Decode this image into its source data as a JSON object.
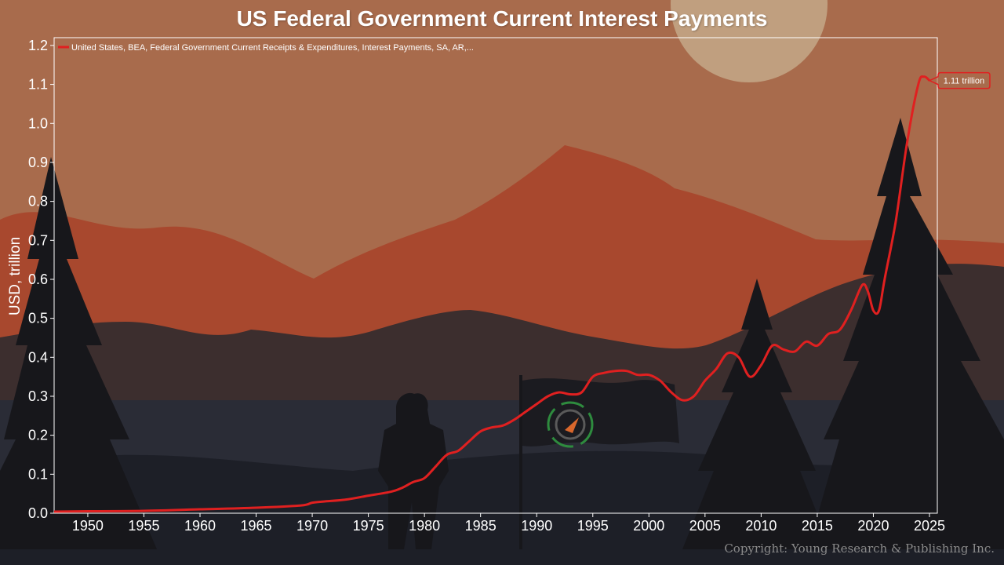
{
  "chart_data": {
    "type": "line",
    "title": "US Federal Government Current Interest Payments",
    "ylabel": "USD, trillion",
    "xlabel": "",
    "xlim": [
      1947,
      2025.7
    ],
    "ylim": [
      0,
      1.22
    ],
    "x_ticks": [
      1950,
      1955,
      1960,
      1965,
      1970,
      1975,
      1980,
      1985,
      1990,
      1995,
      2000,
      2005,
      2010,
      2015,
      2020,
      2025
    ],
    "y_ticks": [
      0.0,
      0.1,
      0.2,
      0.3,
      0.4,
      0.5,
      0.6,
      0.7,
      0.8,
      0.9,
      1.0,
      1.1,
      1.2
    ],
    "grid": false,
    "legend_position": "top-left",
    "series": [
      {
        "name": "United States, BEA, Federal Government Current Receipts & Expenditures, Interest Payments, SA, AR,...",
        "color": "#e02020",
        "x": [
          1947,
          1950,
          1955,
          1960,
          1965,
          1969,
          1970,
          1971,
          1973,
          1975,
          1977,
          1978,
          1979,
          1980,
          1981,
          1982,
          1983,
          1984,
          1985,
          1986,
          1987,
          1988,
          1989,
          1990,
          1991,
          1992,
          1993,
          1994,
          1995,
          1996,
          1997,
          1998,
          1999,
          2000,
          2001,
          2002,
          2003,
          2004,
          2005,
          2006,
          2007,
          2008,
          2009,
          2010,
          2011,
          2012,
          2013,
          2014,
          2015,
          2016,
          2017,
          2018,
          2019,
          2019.5,
          2020,
          2020.5,
          2021,
          2022,
          2023,
          2024,
          2024.5,
          2025
        ],
        "values": [
          0.004,
          0.005,
          0.006,
          0.01,
          0.014,
          0.02,
          0.027,
          0.03,
          0.035,
          0.045,
          0.055,
          0.065,
          0.08,
          0.09,
          0.12,
          0.15,
          0.16,
          0.185,
          0.21,
          0.22,
          0.225,
          0.24,
          0.26,
          0.28,
          0.3,
          0.31,
          0.305,
          0.31,
          0.35,
          0.36,
          0.365,
          0.365,
          0.355,
          0.355,
          0.34,
          0.31,
          0.29,
          0.3,
          0.34,
          0.37,
          0.41,
          0.4,
          0.35,
          0.38,
          0.43,
          0.42,
          0.415,
          0.44,
          0.43,
          0.46,
          0.47,
          0.52,
          0.585,
          0.57,
          0.52,
          0.52,
          0.6,
          0.75,
          0.95,
          1.1,
          1.12,
          1.11
        ]
      }
    ],
    "annotations": [
      {
        "label": "1.11 trillion",
        "x": 2025,
        "y": 1.11
      }
    ]
  },
  "copyright": "Copyright: Young Research & Publishing Inc."
}
